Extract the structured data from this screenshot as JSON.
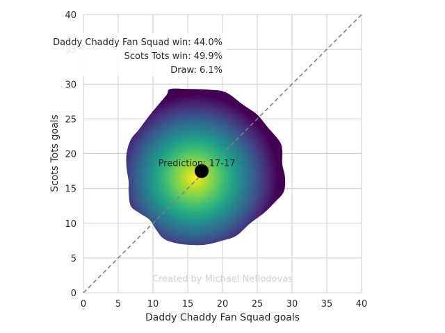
{
  "chart_data": {
    "type": "heatmap",
    "title": "",
    "xlabel": "Daddy Chaddy Fan Squad goals",
    "ylabel": "Scots Tots goals",
    "xlim": [
      0,
      40
    ],
    "ylim": [
      0,
      40
    ],
    "x_ticks": [
      "0",
      "5",
      "10",
      "15",
      "20",
      "25",
      "30",
      "35",
      "40"
    ],
    "y_ticks": [
      "0",
      "5",
      "10",
      "15",
      "20",
      "25",
      "30",
      "35",
      "40"
    ],
    "grid": true,
    "density": {
      "center": [
        16,
        16.5
      ],
      "colormap": "viridis",
      "outline": [
        [
          12.5,
          29.3
        ],
        [
          15,
          29.3
        ],
        [
          18,
          29.2
        ],
        [
          20.5,
          28.8
        ],
        [
          23,
          27
        ],
        [
          25,
          25.6
        ],
        [
          26.5,
          23.8
        ],
        [
          28.2,
          21.8
        ],
        [
          28.6,
          20.5
        ],
        [
          28.6,
          18.5
        ],
        [
          29,
          16.5
        ],
        [
          28.8,
          14.5
        ],
        [
          27.5,
          13
        ],
        [
          26,
          11.5
        ],
        [
          24,
          10
        ],
        [
          22,
          8.2
        ],
        [
          20,
          7.5
        ],
        [
          17.5,
          6.9
        ],
        [
          15,
          6.9
        ],
        [
          13,
          7.2
        ],
        [
          11.5,
          7.8
        ],
        [
          10.5,
          9
        ],
        [
          9.5,
          10.5
        ],
        [
          8,
          11.5
        ],
        [
          6.8,
          12.5
        ],
        [
          6.5,
          14.5
        ],
        [
          6.5,
          16
        ],
        [
          6.2,
          18
        ],
        [
          6.2,
          20
        ],
        [
          6.8,
          22
        ],
        [
          8,
          23.5
        ],
        [
          9.5,
          25.5
        ],
        [
          11,
          27.3
        ],
        [
          12,
          28.5
        ]
      ]
    },
    "prediction_point": {
      "x": 17,
      "y": 17.5,
      "label": "Prediction: 17-17"
    },
    "diagonal": {
      "from": [
        0,
        0
      ],
      "to": [
        40,
        40
      ],
      "style": "dashed",
      "color": "#808080"
    },
    "annotations": [
      "Daddy Chaddy Fan Squad win: 44.0%",
      "Scots Tots win: 49.9%",
      "Draw: 6.1%"
    ],
    "credit": "Created by Michael Nefiodovas"
  }
}
